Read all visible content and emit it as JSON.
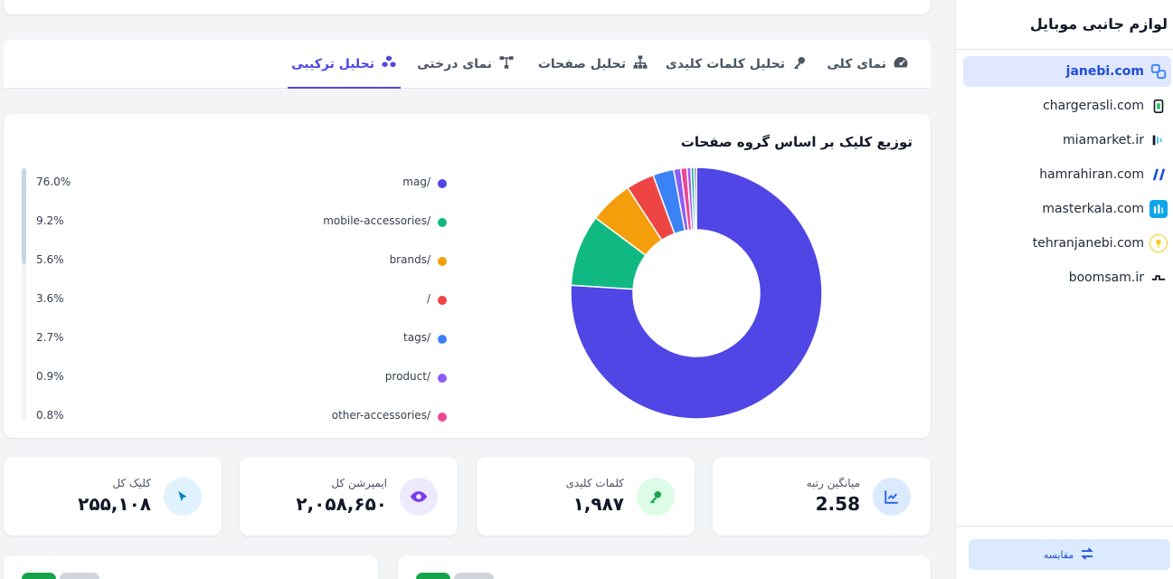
{
  "tabs": [
    {
      "label": "نمای کلی",
      "icon": "gauge-icon",
      "active": false
    },
    {
      "label": "تحلیل کلمات کلیدی",
      "icon": "key-icon",
      "active": false
    },
    {
      "label": "تحلیل صفحات",
      "icon": "sitemap-icon",
      "active": false
    },
    {
      "label": "نمای درختی",
      "icon": "tree-icon",
      "active": false
    },
    {
      "label": "تحلیل ترکیبی",
      "icon": "cubes-icon",
      "active": true
    }
  ],
  "chart_card": {
    "title": "توزیع کلیک بر اساس گروه صفحات"
  },
  "chart_data": {
    "type": "pie",
    "variant": "donut",
    "title": "توزیع کلیک بر اساس گروه صفحات",
    "categories": [
      "/mag",
      "/mobile-accessories",
      "/brands",
      "/",
      "/tags",
      "/product",
      "/other-accessories"
    ],
    "values": [
      76.0,
      9.2,
      5.6,
      3.6,
      2.7,
      0.9,
      0.8
    ],
    "value_labels": [
      "76.0%",
      "9.2%",
      "5.6%",
      "3.6%",
      "2.7%",
      "0.9%",
      "0.8%"
    ],
    "colors": [
      "#4f46e5",
      "#10b981",
      "#f59e0b",
      "#ef4444",
      "#3b82f6",
      "#8b5cf6",
      "#ec4899"
    ],
    "extra_slices": [
      {
        "value": 0.5,
        "color": "#a855f7"
      },
      {
        "value": 0.4,
        "color": "#14b8a6"
      },
      {
        "value": 0.3,
        "color": "#6b7280"
      }
    ],
    "legend_position": "left"
  },
  "stats": [
    {
      "label": "میانگین رتبه",
      "value": "2.58",
      "icon": "trend-icon",
      "color": "#2563eb",
      "bg": "#dbeafe"
    },
    {
      "label": "کلمات کلیدی",
      "value": "۱,۹۸۷",
      "icon": "key-icon",
      "color": "#16a34a",
      "bg": "#dcfce7"
    },
    {
      "label": "ایمپرشن کل",
      "value": "۲,۰۵۸,۶۵۰",
      "icon": "eye-icon",
      "color": "#7c3aed",
      "bg": "#ede9fe"
    },
    {
      "label": "کلیک کل",
      "value": "۲۵۵,۱۰۸",
      "icon": "cursor-icon",
      "color": "#0284c7",
      "bg": "#e0f2fe"
    }
  ],
  "sidebar": {
    "title": "لوازم جانبی موبایل",
    "sites": [
      {
        "domain": "janebi.com",
        "icon": "janebi-logo-icon",
        "active": true
      },
      {
        "domain": "chargerasli.com",
        "icon": "chargerasli-logo-icon",
        "active": false
      },
      {
        "domain": "miamarket.ir",
        "icon": "miamarket-logo-icon",
        "active": false
      },
      {
        "domain": "hamrahiran.com",
        "icon": "hamrahiran-logo-icon",
        "active": false
      },
      {
        "domain": "masterkala.com",
        "icon": "masterkala-logo-icon",
        "active": false
      },
      {
        "domain": "tehranjanebi.com",
        "icon": "tehranjanebi-logo-icon",
        "active": false
      },
      {
        "domain": "boomsam.ir",
        "icon": "boomsam-logo-icon",
        "active": false
      }
    ],
    "compare_label": "مقایسه"
  }
}
